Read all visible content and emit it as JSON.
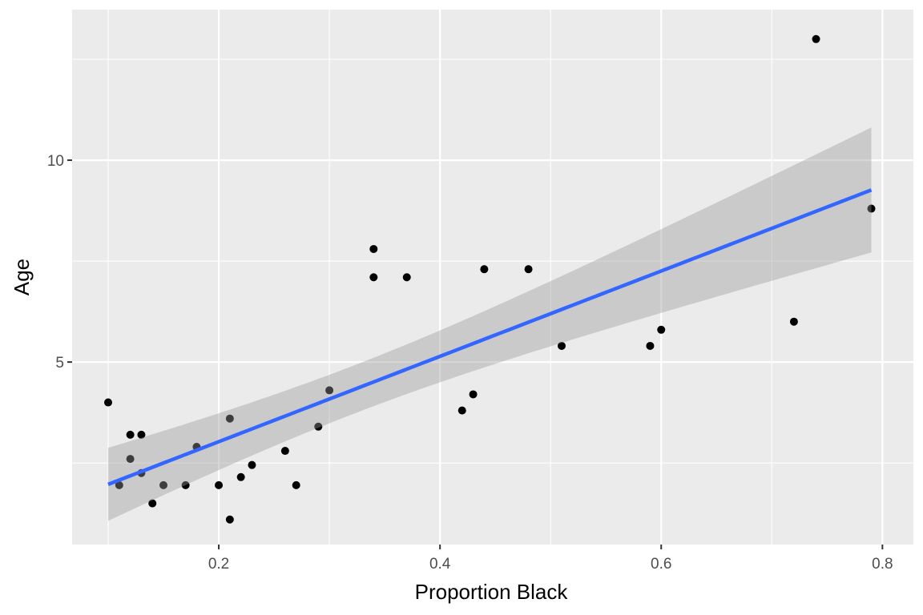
{
  "chart_data": {
    "type": "scatter",
    "title": "",
    "xlabel": "Proportion Black",
    "ylabel": "Age",
    "xlim": [
      0.0674,
      0.828
    ],
    "ylim": [
      0.48,
      13.73
    ],
    "x_ticks": [
      0.2,
      0.4,
      0.6,
      0.8
    ],
    "x_tick_labels": [
      "0.2",
      "0.4",
      "0.6",
      "0.8"
    ],
    "y_ticks": [
      5,
      10
    ],
    "y_tick_labels": [
      "5",
      "10"
    ],
    "grid": true,
    "panel_background": "#EBEBEB",
    "point_color": "#000000",
    "smooth": {
      "method": "linear",
      "confidence_band": true,
      "line_color": "#3366FF",
      "band_color": "#999999"
    },
    "points": [
      {
        "x": 0.1,
        "y": 4.0
      },
      {
        "x": 0.11,
        "y": 1.95
      },
      {
        "x": 0.12,
        "y": 3.2
      },
      {
        "x": 0.12,
        "y": 2.6
      },
      {
        "x": 0.13,
        "y": 3.2
      },
      {
        "x": 0.13,
        "y": 2.25
      },
      {
        "x": 0.14,
        "y": 1.5
      },
      {
        "x": 0.15,
        "y": 1.95
      },
      {
        "x": 0.17,
        "y": 1.95
      },
      {
        "x": 0.18,
        "y": 2.9
      },
      {
        "x": 0.2,
        "y": 1.95
      },
      {
        "x": 0.21,
        "y": 3.6
      },
      {
        "x": 0.21,
        "y": 1.1
      },
      {
        "x": 0.22,
        "y": 2.15
      },
      {
        "x": 0.23,
        "y": 2.45
      },
      {
        "x": 0.26,
        "y": 2.8
      },
      {
        "x": 0.27,
        "y": 1.95
      },
      {
        "x": 0.29,
        "y": 3.4
      },
      {
        "x": 0.3,
        "y": 4.3
      },
      {
        "x": 0.34,
        "y": 7.8
      },
      {
        "x": 0.34,
        "y": 7.1
      },
      {
        "x": 0.37,
        "y": 7.1
      },
      {
        "x": 0.42,
        "y": 3.8
      },
      {
        "x": 0.43,
        "y": 4.2
      },
      {
        "x": 0.44,
        "y": 7.3
      },
      {
        "x": 0.48,
        "y": 7.3
      },
      {
        "x": 0.51,
        "y": 5.4
      },
      {
        "x": 0.59,
        "y": 5.4
      },
      {
        "x": 0.6,
        "y": 5.8
      },
      {
        "x": 0.72,
        "y": 6.0
      },
      {
        "x": 0.74,
        "y": 13.0
      },
      {
        "x": 0.79,
        "y": 8.8
      }
    ]
  }
}
